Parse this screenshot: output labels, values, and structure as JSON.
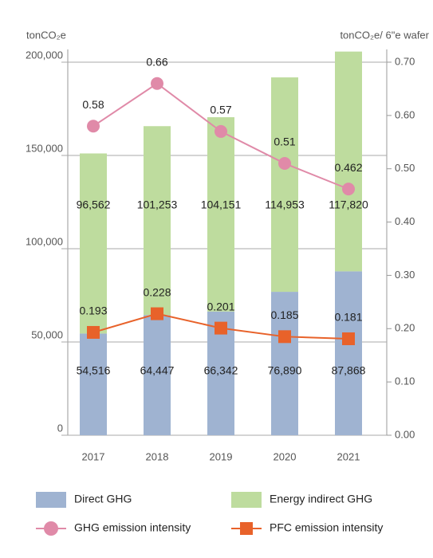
{
  "chart_data": {
    "type": "bar-line",
    "y_label": "tonCO₂e",
    "y2_label": "tonCO₂e/ 6\"e wafer",
    "categories": [
      "2017",
      "2018",
      "2019",
      "2020",
      "2021"
    ],
    "series": [
      {
        "name": "Direct GHG",
        "type": "bar",
        "color": "#9fb3d1",
        "values": [
          54516,
          64447,
          66342,
          76890,
          87868
        ],
        "value_labels": [
          "54,516",
          "64,447",
          "66,342",
          "76,890",
          "87,868"
        ]
      },
      {
        "name": "Energy indirect GHG",
        "type": "bar",
        "color": "#bedc9e",
        "values": [
          96562,
          101253,
          104151,
          114953,
          117820
        ],
        "value_labels": [
          "96,562",
          "101,253",
          "104,151",
          "114,953",
          "117,820"
        ]
      },
      {
        "name": "GHG emission intensity",
        "type": "line",
        "marker": "circle",
        "axis": "y2",
        "color": "#e08aa8",
        "values": [
          0.58,
          0.66,
          0.57,
          0.51,
          0.462
        ]
      },
      {
        "name": "PFC emission intensity",
        "type": "line",
        "marker": "square",
        "axis": "y2",
        "color": "#e8622a",
        "values": [
          0.193,
          0.228,
          0.201,
          0.185,
          0.181
        ]
      }
    ],
    "stacked": true,
    "ylim": [
      0,
      200000
    ],
    "yticks": [
      0,
      {
        "value": 50000,
        "label": "50,000"
      },
      {
        "value": 100000,
        "label": "100,000"
      },
      {
        "value": 150000,
        "label": "150,000"
      },
      {
        "value": 200000,
        "label": "200,000"
      }
    ],
    "y2lim": [
      0,
      0.7
    ],
    "y2ticks": [
      {
        "value": 0,
        "label": "0.00"
      },
      {
        "value": 0.1,
        "label": "0.10"
      },
      {
        "value": 0.2,
        "label": "0.20"
      },
      {
        "value": 0.3,
        "label": "0.30"
      },
      {
        "value": 0.4,
        "label": "0.40"
      },
      {
        "value": 0.5,
        "label": "0.50"
      },
      {
        "value": 0.6,
        "label": "0.60"
      },
      {
        "value": 0.7,
        "label": "0.70"
      }
    ],
    "grid": true
  }
}
